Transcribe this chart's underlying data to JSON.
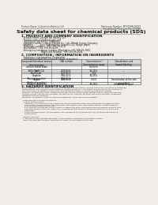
{
  "bg_color": "#f0ede8",
  "header_left": "Product Name: Lithium Ion Battery Cell",
  "header_right_line1": "Reference Number: MTV030N-00019",
  "header_right_line2": "Established / Revision: Dec.7.2010",
  "title": "Safety data sheet for chemical products (SDS)",
  "section1_title": "1. PRODUCT AND COMPANY IDENTIFICATION",
  "section1_items": [
    "· Product name: Lithium Ion Battery Cell",
    "· Product code: Cylindrical-type cell",
    "   SN166500, SN166500, SN166504",
    "· Company name:     Sanyo Electric Co., Ltd., Mobile Energy Company",
    "· Address:          2001 Kamimashiki, Sumoto-City, Hyogo, Japan",
    "· Telephone number:   +81-799-26-4111",
    "· Fax number:  +81-799-26-4129",
    "· Emergency telephone number (Weekday): +81-799-26-2662",
    "                           (Night and Holiday): +81-799-26-2624"
  ],
  "section2_title": "2. COMPOSITION / INFORMATION ON INGREDIENTS",
  "section2_sub1": "· Substance or preparation: Preparation",
  "section2_sub2": "· Information about the chemical nature of product:",
  "table_col_names": [
    "Component/chemical mixture",
    "CAS number",
    "Concentration /\nConcentration range",
    "Classification and\nhazard labeling"
  ],
  "table_subheader": [
    "General name",
    "",
    "",
    ""
  ],
  "table_rows": [
    [
      "Lithium cobalt oxide\n(LiMn-Co-Ni-O4)",
      "-",
      "(30-60%)",
      "-"
    ],
    [
      "Iron",
      "7439-89-6",
      "15-25%",
      "-"
    ],
    [
      "Aluminium",
      "7429-90-5",
      "2-5%",
      "-"
    ],
    [
      "Graphite\n(Natural graphite)\n(Artificial graphite)",
      "7782-42-5\n7782-43-0",
      "10-25%",
      "-"
    ],
    [
      "Copper",
      "7440-50-8",
      "5-15%",
      "Sensitization of the skin\ngroup No.2"
    ],
    [
      "Organic electrolyte",
      "-",
      "10-25%",
      "Inflammable liquid"
    ]
  ],
  "section3_title": "3. HAZARDS IDENTIFICATION",
  "section3_lines": [
    "For the battery cell, chemical materials are stored in a hermetically sealed metal case, designed to withstand",
    "temperatures and pressure-solid conditions during normal use. As a result, during normal use, there is no",
    "physical danger of ignition or expansion and therefore danger of hazardous materials leakage.",
    "However, if exposed to a fire, added mechanical shocks, decomposed, written electric wires by miss-use,",
    "the gas release vent will be operated. The battery cell case will be breached of the extreme. Hazardous",
    "materials may be released.",
    "Moreover, if heated strongly by the surrounding fire, some gas may be emitted.",
    "",
    "· Most important hazard and effects:",
    "  Human health effects:",
    "    Inhalation: The release of the electrolyte has an anesthetic action and stimulates in respiratory tract.",
    "    Skin contact: The release of the electrolyte stimulates a skin. The electrolyte skin contact causes a",
    "    sore and stimulation on the skin.",
    "    Eye contact: The release of the electrolyte stimulates eyes. The electrolyte eye contact causes a sore",
    "    and stimulation on the eye. Especially, a substance that causes a strong inflammation of the eye is",
    "    contained.",
    "    Environmental effects: Since a battery cell remains in the environment, do not throw out it into the",
    "    environment.",
    "",
    "· Specific hazards:",
    "  If the electrolyte contacts with water, it will generate detrimental hydrogen fluoride.",
    "  Since the used electrolyte is inflammable liquid, do not bring close to fire."
  ]
}
